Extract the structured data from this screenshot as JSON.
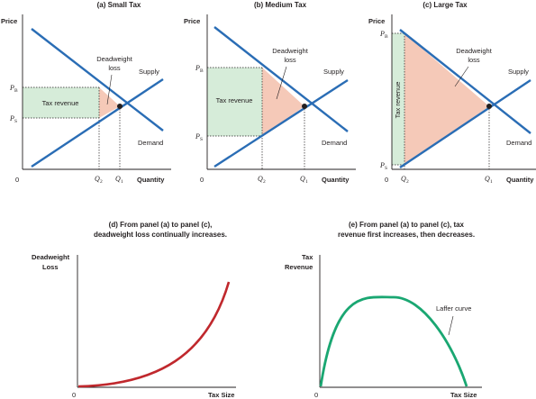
{
  "panels": {
    "a": {
      "title": "(a) Small Tax",
      "price_label": "Price",
      "quantity_label": "Quantity",
      "origin_label": "0",
      "supply_label": "Supply",
      "demand_label": "Demand",
      "tax_revenue_label": "Tax revenue",
      "dwl_line1": "Deadweight",
      "dwl_line2": "loss",
      "pb_label": "P",
      "pb_sub": "B",
      "ps_label": "P",
      "ps_sub": "S",
      "q2_label": "Q",
      "q2_sub": "2",
      "q1_label": "Q",
      "q1_sub": "1"
    },
    "b": {
      "title": "(b) Medium Tax",
      "price_label": "Price",
      "quantity_label": "Quantity",
      "origin_label": "0",
      "supply_label": "Supply",
      "demand_label": "Demand",
      "tax_revenue_label": "Tax revenue",
      "dwl_line1": "Deadweight",
      "dwl_line2": "loss",
      "pb_label": "P",
      "pb_sub": "B",
      "ps_label": "P",
      "ps_sub": "S",
      "q2_label": "Q",
      "q2_sub": "2",
      "q1_label": "Q",
      "q1_sub": "1"
    },
    "c": {
      "title": "(c) Large Tax",
      "price_label": "Price",
      "quantity_label": "Quantity",
      "origin_label": "0",
      "supply_label": "Supply",
      "demand_label": "Demand",
      "tax_revenue_label": "Tax revenue",
      "dwl_line1": "Deadweight",
      "dwl_line2": "loss",
      "pb_label": "P",
      "pb_sub": "B",
      "ps_label": "P",
      "ps_sub": "S",
      "q2_label": "Q",
      "q2_sub": "2",
      "q1_label": "Q",
      "q1_sub": "1"
    },
    "d": {
      "caption_line1": "(d) From panel (a) to panel (c),",
      "caption_line2": "deadweight loss continually increases.",
      "y_label_line1": "Deadweight",
      "y_label_line2": "Loss",
      "x_label": "Tax Size",
      "origin_label": "0"
    },
    "e": {
      "caption_line1": "(e) From panel (a) to panel (c), tax",
      "caption_line2": "revenue first increases, then decreases.",
      "y_label_line1": "Tax",
      "y_label_line2": "Revenue",
      "x_label": "Tax Size",
      "origin_label": "0",
      "curve_label": "Laffer curve"
    }
  },
  "colors": {
    "line_blue": "#2a6db5",
    "tax_revenue_fill": "#d6ecd9",
    "dwl_fill": "#f5c9b8",
    "dwl_curve": "#c0282d",
    "laffer_curve": "#1aa772",
    "axis": "#231f20"
  }
}
